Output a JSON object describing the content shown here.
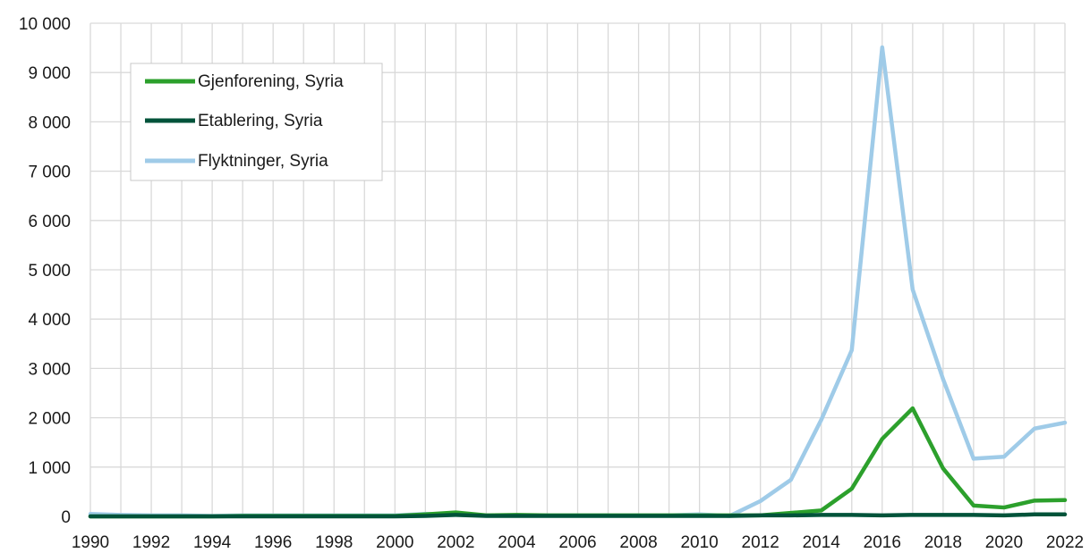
{
  "chart_data": {
    "type": "line",
    "title": "",
    "xlabel": "",
    "ylabel": "",
    "x": [
      1990,
      1991,
      1992,
      1993,
      1994,
      1995,
      1996,
      1997,
      1998,
      1999,
      2000,
      2001,
      2002,
      2003,
      2004,
      2005,
      2006,
      2007,
      2008,
      2009,
      2010,
      2011,
      2012,
      2013,
      2014,
      2015,
      2016,
      2017,
      2018,
      2019,
      2020,
      2021,
      2022
    ],
    "xlim": [
      1990,
      2022
    ],
    "ylim": [
      0,
      10000
    ],
    "x_ticks": [
      "1990",
      "1992",
      "1994",
      "1996",
      "1998",
      "2000",
      "2002",
      "2004",
      "2006",
      "2008",
      "2010",
      "2012",
      "2014",
      "2016",
      "2018",
      "2020",
      "2022"
    ],
    "y_ticks": [
      "0",
      "1 000",
      "2 000",
      "3 000",
      "4 000",
      "5 000",
      "6 000",
      "7 000",
      "8 000",
      "9 000",
      "10 000"
    ],
    "grid": true,
    "legend_position": "top-left",
    "series": [
      {
        "name": "Gjenforening, Syria",
        "color": "#2ca02c",
        "values": [
          0,
          0,
          0,
          0,
          0,
          10,
          10,
          10,
          10,
          10,
          10,
          40,
          80,
          20,
          30,
          20,
          20,
          20,
          20,
          20,
          20,
          20,
          20,
          70,
          120,
          560,
          1570,
          2190,
          970,
          220,
          180,
          320,
          330
        ]
      },
      {
        "name": "Etablering, Syria",
        "color": "#00533a",
        "values": [
          0,
          0,
          0,
          0,
          0,
          0,
          0,
          0,
          0,
          0,
          0,
          10,
          30,
          10,
          10,
          10,
          10,
          10,
          10,
          10,
          10,
          10,
          20,
          20,
          30,
          30,
          20,
          30,
          30,
          30,
          20,
          40,
          40
        ]
      },
      {
        "name": "Flyktninger, Syria",
        "color": "#9fcbe8",
        "values": [
          50,
          30,
          20,
          20,
          10,
          20,
          20,
          20,
          20,
          20,
          20,
          50,
          40,
          20,
          20,
          20,
          20,
          20,
          20,
          20,
          40,
          10,
          310,
          740,
          1960,
          3370,
          9510,
          4600,
          2780,
          1170,
          1210,
          1780,
          1900
        ]
      }
    ]
  }
}
